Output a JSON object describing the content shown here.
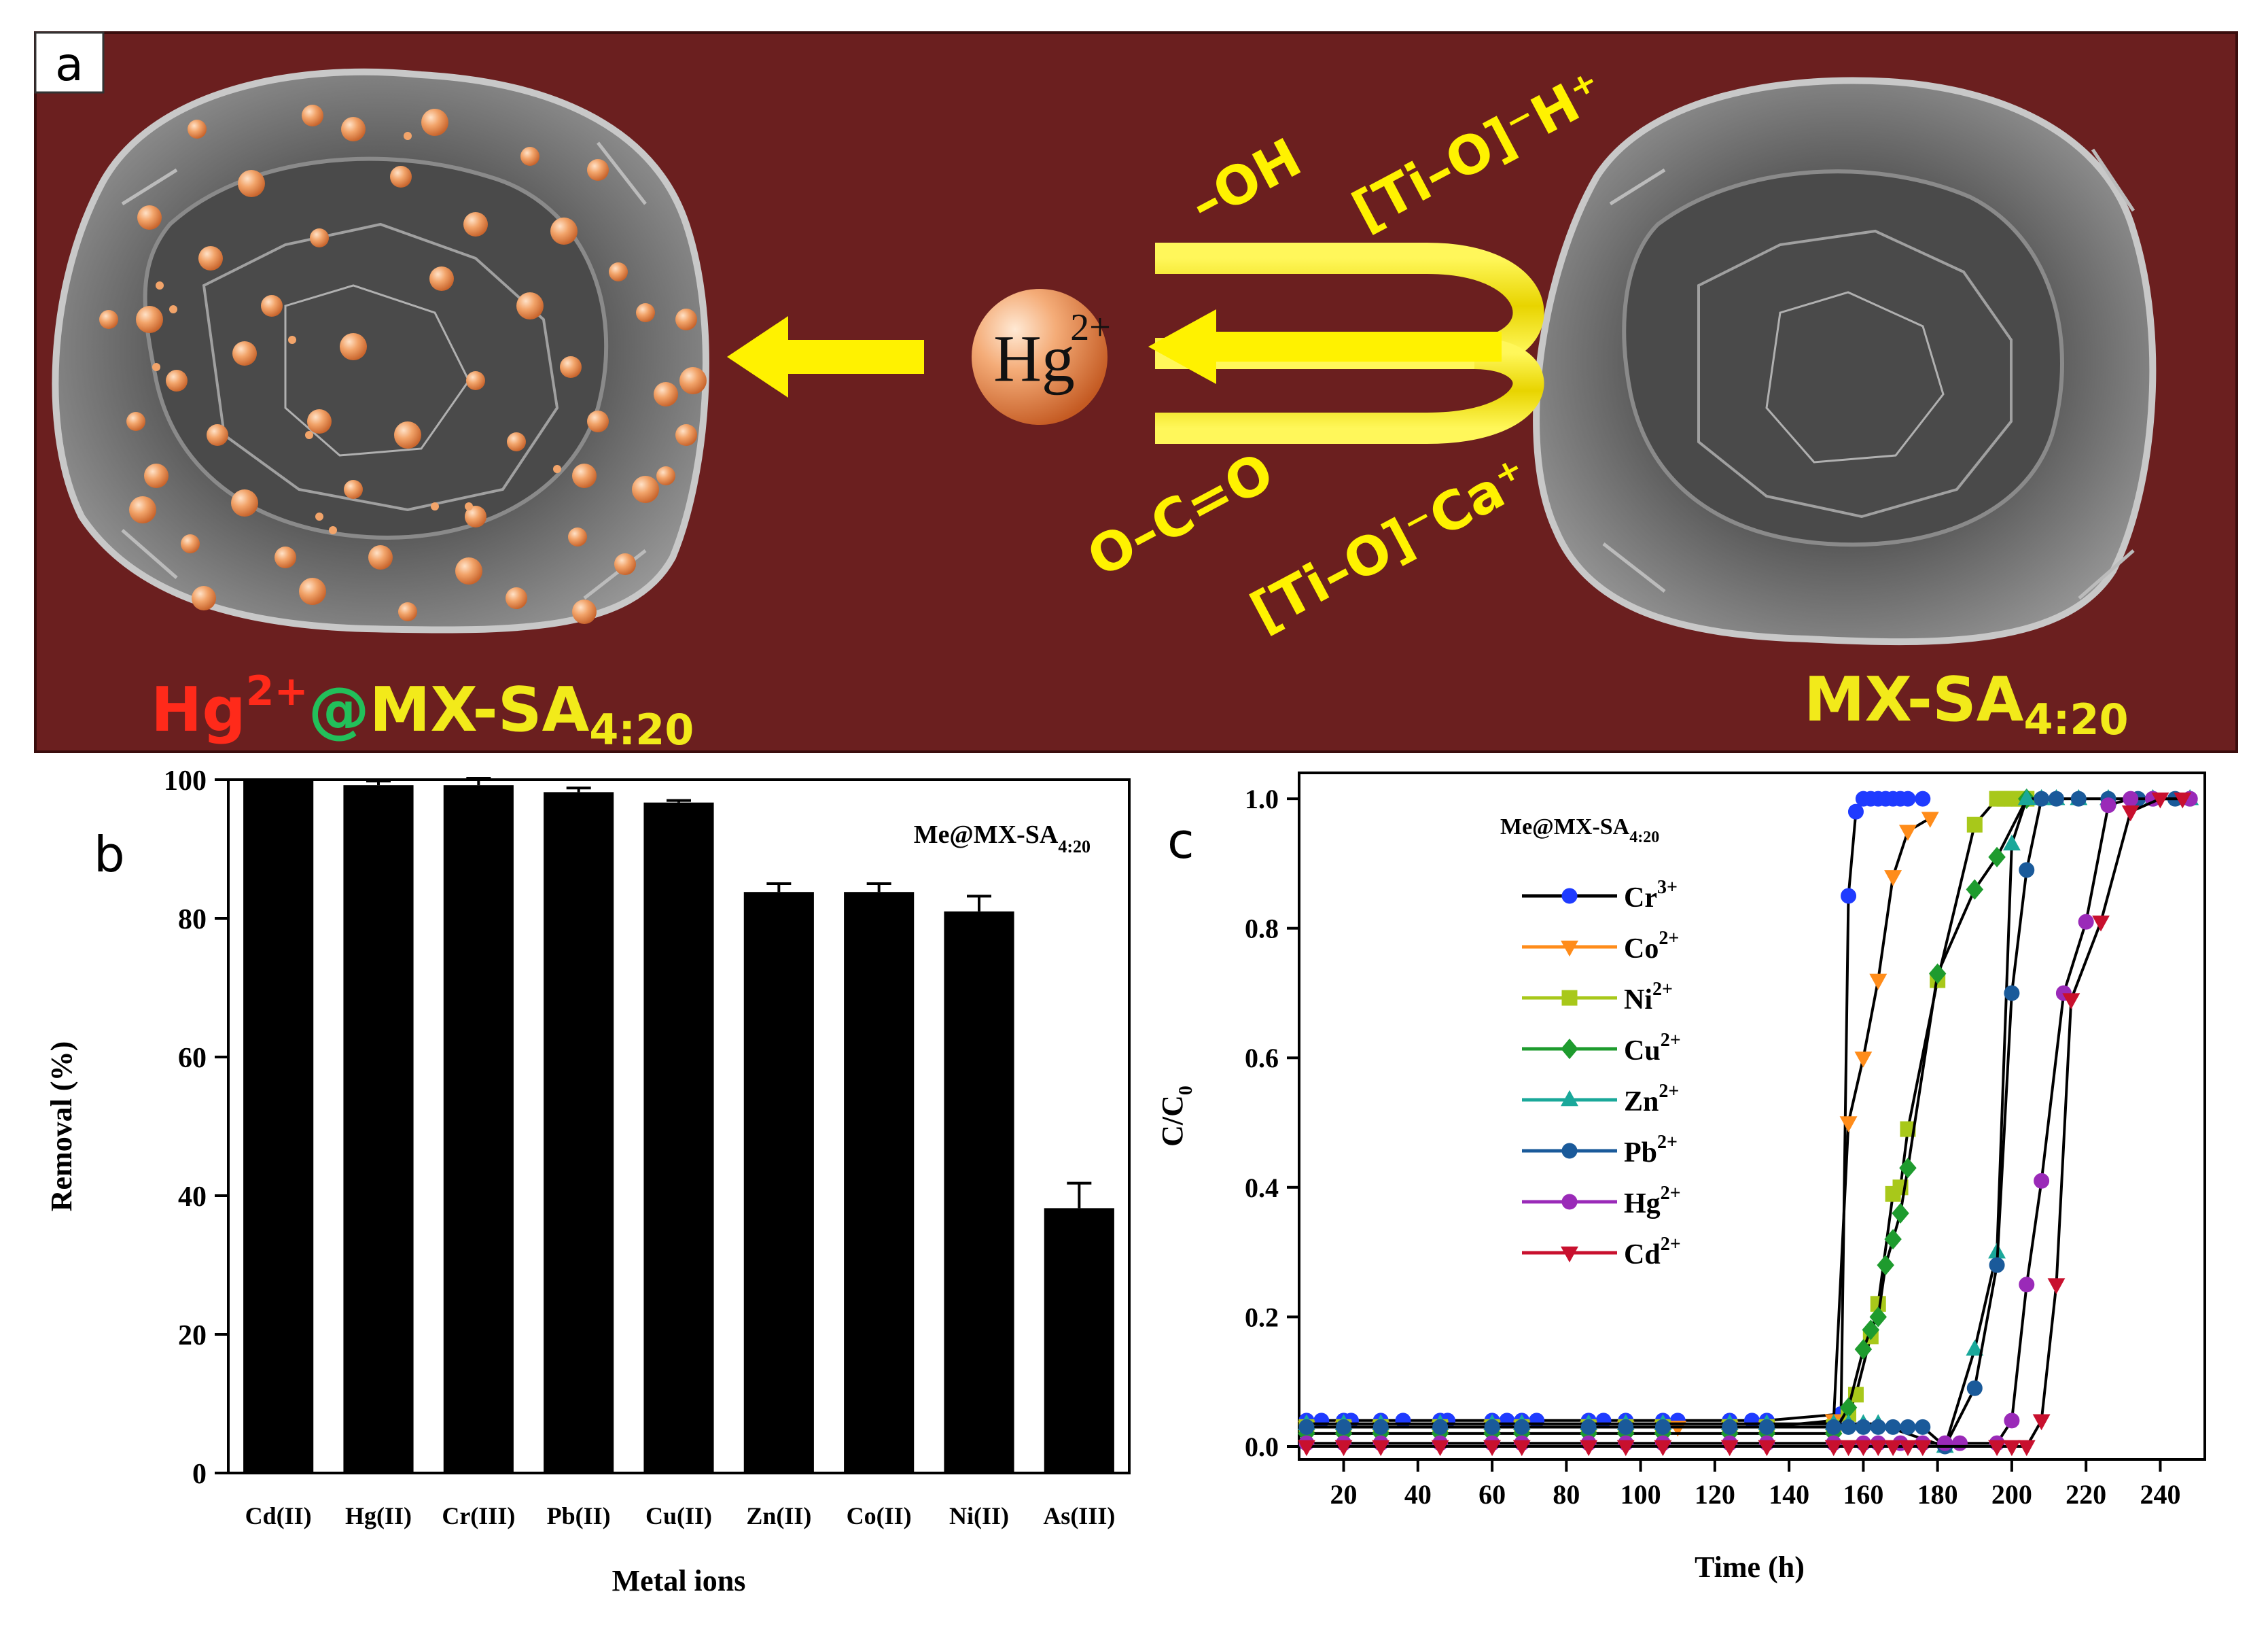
{
  "panel_a": {
    "label": "a",
    "center_ion": "Hg",
    "center_ion_charge": "2+",
    "groups": [
      "–OH",
      "[Ti–O]⁻H⁺",
      "O–C=O",
      "[Ti–O]⁻Ca⁺"
    ],
    "left_label": {
      "ion": "Hg",
      "charge": "2+",
      "at": "@",
      "material": "MX-SA",
      "ratio": "4:20"
    },
    "right_label": {
      "material": "MX-SA",
      "ratio": "4:20"
    },
    "colors": {
      "background": "#6B1F1F",
      "arrow": "#FFF200",
      "label_yellow": "#F2EA1A",
      "label_red": "#FF2A1A",
      "label_green": "#22C05A",
      "sphere": "#F2A46A"
    }
  },
  "chart_data": [
    {
      "id": "b",
      "type": "bar",
      "panel_label": "b",
      "title": "Me@MX-SA",
      "title_sub": "4:20",
      "xlabel": "Metal ions",
      "ylabel": "Removal (%)",
      "ylim": [
        0,
        100
      ],
      "yticks": [
        0,
        20,
        40,
        60,
        80,
        100
      ],
      "categories": [
        "Cd(II)",
        "Hg(II)",
        "Cr(III)",
        "Pb(II)",
        "Cu(II)",
        "Zn(II)",
        "Co(II)",
        "Ni(II)",
        "As(III)"
      ],
      "values": [
        100,
        99.2,
        99.2,
        98.2,
        96.7,
        83.8,
        83.8,
        81,
        38.2
      ],
      "errors": [
        0,
        0.6,
        1.0,
        0.6,
        0.3,
        1.2,
        1.2,
        2.2,
        3.6
      ],
      "color": "#000000"
    },
    {
      "id": "c",
      "type": "line",
      "panel_label": "c",
      "title": "Me@MX-SA",
      "title_sub": "4:20",
      "xlabel": "Time (h)",
      "ylabel": "C/C",
      "ylabel_sub": "0",
      "xlim": [
        8,
        252
      ],
      "ylim": [
        -0.02,
        1.04
      ],
      "xticks": [
        20,
        40,
        60,
        80,
        100,
        120,
        140,
        160,
        180,
        200,
        220,
        240
      ],
      "yticks": [
        0.0,
        0.2,
        0.4,
        0.6,
        0.8,
        1.0
      ],
      "ytick_labels": [
        "0.0",
        "0.2",
        "0.4",
        "0.6",
        "0.8",
        "1.0"
      ],
      "series": [
        {
          "name": "Cr",
          "charge": "3+",
          "color": "#1F3BFF",
          "marker": "circle",
          "x": [
            10,
            14,
            20,
            22,
            30,
            36,
            46,
            48,
            60,
            64,
            68,
            72,
            86,
            90,
            96,
            106,
            110,
            124,
            130,
            134,
            154,
            156,
            158,
            160,
            162,
            164,
            166,
            168,
            170,
            172,
            176
          ],
          "y": [
            0.04,
            0.04,
            0.04,
            0.04,
            0.04,
            0.04,
            0.04,
            0.04,
            0.04,
            0.04,
            0.04,
            0.04,
            0.04,
            0.04,
            0.04,
            0.04,
            0.04,
            0.04,
            0.04,
            0.04,
            0.05,
            0.85,
            0.98,
            1.0,
            1.0,
            1.0,
            1.0,
            1.0,
            1.0,
            1.0,
            1.0
          ]
        },
        {
          "name": "Co",
          "charge": "2+",
          "color": "#FF8C1A",
          "marker": "triangle-down",
          "x": [
            10,
            20,
            30,
            46,
            60,
            68,
            86,
            96,
            106,
            110,
            124,
            134,
            152,
            156,
            160,
            164,
            168,
            172,
            178
          ],
          "y": [
            0.03,
            0.03,
            0.03,
            0.03,
            0.03,
            0.03,
            0.03,
            0.03,
            0.03,
            0.03,
            0.03,
            0.03,
            0.04,
            0.5,
            0.6,
            0.72,
            0.88,
            0.95,
            0.97
          ]
        },
        {
          "name": "Ni",
          "charge": "2+",
          "color": "#A8C81A",
          "marker": "square",
          "x": [
            10,
            20,
            30,
            46,
            60,
            68,
            86,
            96,
            106,
            124,
            134,
            152,
            156,
            158,
            162,
            164,
            168,
            170,
            172,
            180,
            190,
            196,
            198,
            200,
            202,
            204
          ],
          "y": [
            0.03,
            0.03,
            0.03,
            0.03,
            0.03,
            0.03,
            0.03,
            0.03,
            0.03,
            0.03,
            0.03,
            0.03,
            0.05,
            0.08,
            0.17,
            0.22,
            0.39,
            0.4,
            0.49,
            0.72,
            0.96,
            1.0,
            1.0,
            1.0,
            1.0,
            1.0
          ]
        },
        {
          "name": "Cu",
          "charge": "2+",
          "color": "#1E9B2E",
          "marker": "diamond",
          "x": [
            10,
            20,
            30,
            46,
            60,
            68,
            86,
            96,
            106,
            124,
            134,
            152,
            156,
            160,
            162,
            164,
            166,
            168,
            170,
            172,
            180,
            190,
            196,
            204
          ],
          "y": [
            0.02,
            0.02,
            0.02,
            0.02,
            0.02,
            0.02,
            0.02,
            0.02,
            0.02,
            0.02,
            0.02,
            0.02,
            0.06,
            0.15,
            0.18,
            0.2,
            0.28,
            0.32,
            0.36,
            0.43,
            0.73,
            0.86,
            0.91,
            1.0
          ]
        },
        {
          "name": "Zn",
          "charge": "2+",
          "color": "#1AA89A",
          "marker": "triangle-up",
          "x": [
            10,
            20,
            30,
            46,
            60,
            68,
            86,
            96,
            106,
            124,
            134,
            152,
            156,
            160,
            164,
            182,
            190,
            196,
            200,
            204,
            208,
            212,
            218,
            226,
            238,
            248
          ],
          "y": [
            0.035,
            0.035,
            0.035,
            0.035,
            0.035,
            0.035,
            0.035,
            0.035,
            0.035,
            0.035,
            0.035,
            0.035,
            0.035,
            0.035,
            0.035,
            0.0,
            0.15,
            0.3,
            0.93,
            1.0,
            1.0,
            1.0,
            1.0,
            1.0,
            1.0,
            1.0
          ]
        },
        {
          "name": "Pb",
          "charge": "2+",
          "color": "#1A5A9A",
          "marker": "circle",
          "x": [
            10,
            20,
            30,
            46,
            60,
            68,
            86,
            96,
            106,
            124,
            134,
            152,
            156,
            160,
            164,
            168,
            172,
            176,
            182,
            190,
            196,
            200,
            204,
            208,
            212,
            218,
            226,
            234,
            238,
            244,
            248
          ],
          "y": [
            0.03,
            0.03,
            0.03,
            0.03,
            0.03,
            0.03,
            0.03,
            0.03,
            0.03,
            0.03,
            0.03,
            0.03,
            0.03,
            0.03,
            0.03,
            0.03,
            0.03,
            0.03,
            0.0,
            0.09,
            0.28,
            0.7,
            0.89,
            1.0,
            1.0,
            1.0,
            1.0,
            1.0,
            1.0,
            1.0,
            1.0
          ]
        },
        {
          "name": "Hg",
          "charge": "2+",
          "color": "#9A2AB8",
          "marker": "circle",
          "x": [
            10,
            20,
            30,
            46,
            60,
            68,
            86,
            96,
            106,
            124,
            134,
            152,
            160,
            164,
            170,
            176,
            182,
            186,
            196,
            200,
            204,
            208,
            214,
            220,
            226,
            232,
            238,
            248
          ],
          "y": [
            0.005,
            0.005,
            0.005,
            0.005,
            0.005,
            0.005,
            0.005,
            0.005,
            0.005,
            0.005,
            0.005,
            0.005,
            0.005,
            0.005,
            0.005,
            0.005,
            0.005,
            0.005,
            0.005,
            0.04,
            0.25,
            0.41,
            0.7,
            0.81,
            0.99,
            1.0,
            1.0,
            1.0
          ]
        },
        {
          "name": "Cd",
          "charge": "2+",
          "color": "#C8102E",
          "marker": "triangle-down",
          "x": [
            10,
            20,
            30,
            46,
            60,
            68,
            86,
            96,
            106,
            124,
            134,
            152,
            156,
            160,
            164,
            168,
            172,
            176,
            196,
            200,
            204,
            208,
            212,
            216,
            224,
            232,
            240,
            246
          ],
          "y": [
            0.0,
            0.0,
            0.0,
            0.0,
            0.0,
            0.0,
            0.0,
            0.0,
            0.0,
            0.0,
            0.0,
            0.0,
            0.0,
            0.0,
            0.0,
            0.0,
            0.0,
            0.0,
            0.0,
            0.0,
            0.0,
            0.04,
            0.25,
            0.69,
            0.81,
            0.98,
            1.0,
            1.0
          ]
        }
      ]
    }
  ]
}
